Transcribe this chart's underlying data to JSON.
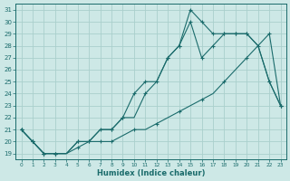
{
  "xlabel": "Humidex (Indice chaleur)",
  "background_color": "#cde8e6",
  "grid_color": "#aacfcc",
  "line_color": "#1a6b6b",
  "xlim": [
    -0.5,
    23.5
  ],
  "ylim": [
    18.5,
    31.5
  ],
  "xticks": [
    0,
    1,
    2,
    3,
    4,
    5,
    6,
    7,
    8,
    9,
    10,
    11,
    12,
    13,
    14,
    15,
    16,
    17,
    18,
    19,
    20,
    21,
    22,
    23
  ],
  "yticks": [
    19,
    20,
    21,
    22,
    23,
    24,
    25,
    26,
    27,
    28,
    29,
    30,
    31
  ],
  "line1_x": [
    0,
    1,
    2,
    3,
    4,
    5,
    6,
    7,
    8,
    9,
    10,
    11,
    12,
    13,
    14,
    15,
    16,
    17,
    18,
    19,
    20,
    21,
    22,
    23
  ],
  "line1_y": [
    21,
    20,
    19,
    19,
    19,
    20,
    20,
    21,
    21,
    22,
    24,
    25,
    25,
    27,
    28,
    31,
    30,
    29,
    29,
    29,
    29,
    28,
    25,
    23
  ],
  "line1_mx": [
    0,
    1,
    2,
    3,
    5,
    6,
    8,
    9,
    10,
    11,
    13,
    14,
    15,
    16,
    17,
    18,
    19,
    20,
    21,
    22,
    23
  ],
  "line1_my": [
    21,
    20,
    19,
    19,
    20,
    20,
    21,
    22,
    24,
    25,
    27,
    28,
    31,
    30,
    29,
    29,
    29,
    29,
    28,
    25,
    23
  ],
  "line2_x": [
    0,
    1,
    2,
    3,
    4,
    5,
    6,
    7,
    8,
    9,
    10,
    11,
    12,
    13,
    14,
    15,
    16,
    17,
    18,
    19,
    20,
    21,
    22,
    23
  ],
  "line2_y": [
    21,
    20,
    19,
    19,
    19,
    20,
    20,
    21,
    21,
    22,
    22,
    24,
    25,
    27,
    28,
    30,
    27,
    28,
    29,
    29,
    29,
    28,
    25,
    23
  ],
  "line2_mx": [
    0,
    1,
    2,
    3,
    5,
    7,
    8,
    9,
    11,
    12,
    13,
    14,
    15,
    16,
    17,
    18,
    19,
    20,
    22,
    23
  ],
  "line2_my": [
    21,
    20,
    19,
    19,
    20,
    21,
    21,
    22,
    24,
    25,
    27,
    28,
    30,
    27,
    28,
    29,
    29,
    29,
    25,
    23
  ],
  "line3_x": [
    0,
    1,
    2,
    3,
    4,
    5,
    6,
    7,
    8,
    9,
    10,
    11,
    12,
    13,
    14,
    15,
    16,
    17,
    18,
    19,
    20,
    21,
    22,
    23
  ],
  "line3_y": [
    21,
    20,
    19,
    19,
    19,
    19.5,
    20,
    20,
    20,
    20.5,
    21,
    21,
    21.5,
    22,
    22.5,
    23,
    23.5,
    24,
    25,
    26,
    27,
    28,
    29,
    23
  ],
  "line3_mx": [
    0,
    1,
    2,
    3,
    5,
    6,
    7,
    8,
    10,
    12,
    14,
    16,
    18,
    20,
    22,
    23
  ],
  "line3_my": [
    21,
    20,
    19,
    19,
    19.5,
    20,
    20,
    20,
    21,
    21.5,
    22.5,
    23.5,
    25,
    27,
    29,
    23
  ]
}
